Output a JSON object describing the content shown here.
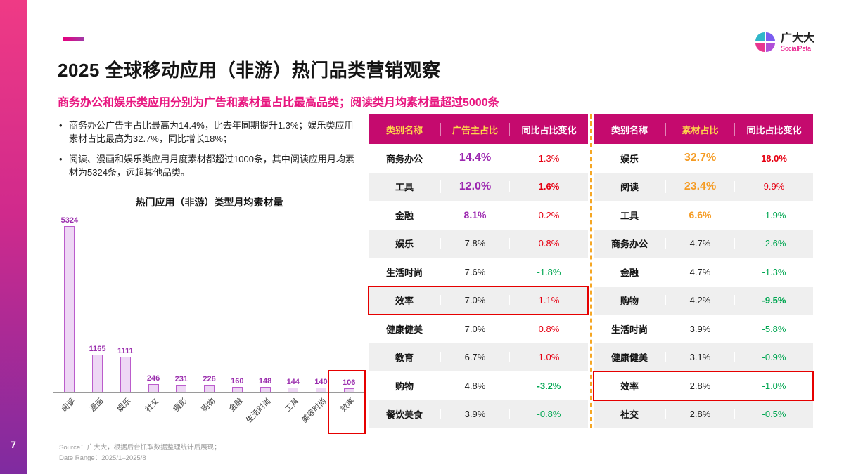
{
  "page": {
    "number": "7"
  },
  "header": {
    "title": "2025 全球移动应用（非游）热门品类营销观察",
    "subtitle": "商务办公和娱乐类应用分别为广告和素材量占比最高品类；阅读类月均素材量超过5000条",
    "logo": {
      "name": "广大大",
      "sub": "SocialPeta"
    }
  },
  "bullets": [
    "商务办公广告主占比最高为14.4%，比去年同期提升1.3%；娱乐类应用素材占比最高为32.7%，同比增长18%；",
    "阅读、漫画和娱乐类应用月度素材都超过1000条，其中阅读应用月均素材为5324条，远超其他品类。"
  ],
  "chart_data": [
    {
      "type": "bar",
      "title": "热门应用（非游）类型月均素材量",
      "categories": [
        "阅读",
        "漫画",
        "娱乐",
        "社交",
        "摄影",
        "购物",
        "金融",
        "生活时尚",
        "工具",
        "美容时尚",
        "效率"
      ],
      "values": [
        5324,
        1165,
        1111,
        246,
        231,
        226,
        160,
        148,
        144,
        140,
        106
      ],
      "xlabel": "",
      "ylabel": "",
      "ylim": [
        0,
        5324
      ],
      "grid": false,
      "legend": "none",
      "highlight_index": 10,
      "bar_fill": "#eed7f5",
      "bar_border": "#bb5ccc",
      "value_label_color": "#9b2fae",
      "highlight_box_color": "#e60000"
    },
    {
      "type": "table",
      "headers": [
        {
          "label": "类别名称",
          "color": "yellow"
        },
        {
          "label": "广告主占比",
          "color": "yellow"
        },
        {
          "label": "同比占比变化",
          "color": "white"
        }
      ],
      "accent_color": "#9c27b0",
      "rows": [
        {
          "category": "商务办公",
          "value": "14.4%",
          "value_style": "accent-lg",
          "change": "1.3%",
          "change_style": "up"
        },
        {
          "category": "工具",
          "value": "12.0%",
          "value_style": "accent-lg",
          "change": "1.6%",
          "change_style": "up-bold"
        },
        {
          "category": "金融",
          "value": "8.1%",
          "value_style": "accent",
          "change": "0.2%",
          "change_style": "up"
        },
        {
          "category": "娱乐",
          "value": "7.8%",
          "value_style": "plain",
          "change": "0.8%",
          "change_style": "up"
        },
        {
          "category": "生活时尚",
          "value": "7.6%",
          "value_style": "plain",
          "change": "-1.8%",
          "change_style": "down"
        },
        {
          "category": "效率",
          "value": "7.0%",
          "value_style": "plain",
          "change": "1.1%",
          "change_style": "up",
          "highlight": true
        },
        {
          "category": "健康健美",
          "value": "7.0%",
          "value_style": "plain",
          "change": "0.8%",
          "change_style": "up"
        },
        {
          "category": "教育",
          "value": "6.7%",
          "value_style": "plain",
          "change": "1.0%",
          "change_style": "up"
        },
        {
          "category": "购物",
          "value": "4.8%",
          "value_style": "plain",
          "change": "-3.2%",
          "change_style": "down-bold"
        },
        {
          "category": "餐饮美食",
          "value": "3.9%",
          "value_style": "plain",
          "change": "-0.8%",
          "change_style": "down"
        }
      ]
    },
    {
      "type": "table",
      "headers": [
        {
          "label": "类别名称",
          "color": "white"
        },
        {
          "label": "素材占比",
          "color": "yellow"
        },
        {
          "label": "同比占比变化",
          "color": "white"
        }
      ],
      "accent_color": "#f59b23",
      "rows": [
        {
          "category": "娱乐",
          "value": "32.7%",
          "value_style": "accent-lg",
          "change": "18.0%",
          "change_style": "up-bold"
        },
        {
          "category": "阅读",
          "value": "23.4%",
          "value_style": "accent-lg",
          "change": "9.9%",
          "change_style": "up"
        },
        {
          "category": "工具",
          "value": "6.6%",
          "value_style": "accent",
          "change": "-1.9%",
          "change_style": "down"
        },
        {
          "category": "商务办公",
          "value": "4.7%",
          "value_style": "plain",
          "change": "-2.6%",
          "change_style": "down"
        },
        {
          "category": "金融",
          "value": "4.7%",
          "value_style": "plain",
          "change": "-1.3%",
          "change_style": "down"
        },
        {
          "category": "购物",
          "value": "4.2%",
          "value_style": "plain",
          "change": "-9.5%",
          "change_style": "down-bold"
        },
        {
          "category": "生活时尚",
          "value": "3.9%",
          "value_style": "plain",
          "change": "-5.8%",
          "change_style": "down"
        },
        {
          "category": "健康健美",
          "value": "3.1%",
          "value_style": "plain",
          "change": "-0.9%",
          "change_style": "down"
        },
        {
          "category": "效率",
          "value": "2.8%",
          "value_style": "plain",
          "change": "-1.0%",
          "change_style": "down",
          "highlight": true
        },
        {
          "category": "社交",
          "value": "2.8%",
          "value_style": "plain",
          "change": "-0.5%",
          "change_style": "down"
        }
      ]
    }
  ],
  "footer": {
    "source": "Source：广大大，根据后台抓取数据整理统计后展现；",
    "range": "Date Range：2025/1–2025/8"
  },
  "colors": {
    "header_bg": "#c50a6e",
    "subtitle": "#e81780",
    "up": "#e60012",
    "down": "#00a651",
    "table1_accent": "#9c27b0",
    "table2_accent": "#f59b23",
    "separator": "#f5a623",
    "highlight_border": "#e60000"
  }
}
